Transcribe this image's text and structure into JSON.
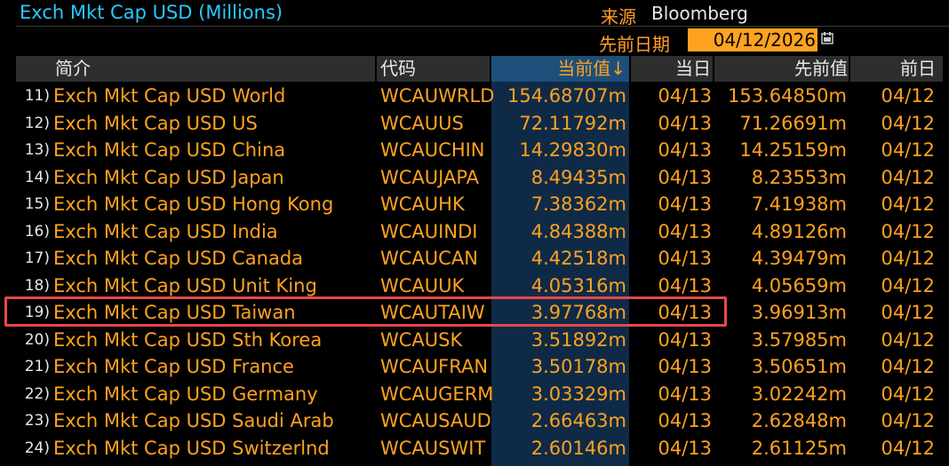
{
  "header_bar": {
    "title": "Exch Mkt Cap USD (Millions)",
    "source_label": "来源",
    "source_value": "Bloomberg",
    "prev_date_label": "先前日期",
    "prev_date_value": "04/12/2026"
  },
  "columns": {
    "profile": "简介",
    "ticker": "代码",
    "current": "当前值↓",
    "current_date": "当日",
    "previous": "先前值",
    "previous_date": "前日"
  },
  "rows": [
    {
      "n": "11)",
      "name": "Exch Mkt Cap USD World",
      "code": "WCAUWRLD",
      "cur": "154.68707m",
      "cd": "04/13",
      "prev": "153.64850m",
      "pd": "04/12"
    },
    {
      "n": "12)",
      "name": "Exch Mkt Cap USD US",
      "code": "WCAUUS",
      "cur": "72.11792m",
      "cd": "04/13",
      "prev": "71.26691m",
      "pd": "04/12"
    },
    {
      "n": "13)",
      "name": "Exch Mkt Cap USD China",
      "code": "WCAUCHIN",
      "cur": "14.29830m",
      "cd": "04/13",
      "prev": "14.25159m",
      "pd": "04/12"
    },
    {
      "n": "14)",
      "name": "Exch Mkt Cap USD Japan",
      "code": "WCAUJAPA",
      "cur": "8.49435m",
      "cd": "04/13",
      "prev": "8.23553m",
      "pd": "04/12"
    },
    {
      "n": "15)",
      "name": "Exch Mkt Cap USD Hong Kong",
      "code": "WCAUHK",
      "cur": "7.38362m",
      "cd": "04/13",
      "prev": "7.41938m",
      "pd": "04/12"
    },
    {
      "n": "16)",
      "name": "Exch Mkt Cap USD India",
      "code": "WCAUINDI",
      "cur": "4.84388m",
      "cd": "04/13",
      "prev": "4.89126m",
      "pd": "04/12"
    },
    {
      "n": "17)",
      "name": "Exch Mkt Cap USD Canada",
      "code": "WCAUCAN",
      "cur": "4.42518m",
      "cd": "04/13",
      "prev": "4.39479m",
      "pd": "04/12"
    },
    {
      "n": "18)",
      "name": "Exch Mkt Cap USD Unit King",
      "code": "WCAUUK",
      "cur": "4.05316m",
      "cd": "04/13",
      "prev": "4.05659m",
      "pd": "04/12"
    },
    {
      "n": "19)",
      "name": "Exch Mkt Cap USD Taiwan",
      "code": "WCAUTAIW",
      "cur": "3.97768m",
      "cd": "04/13",
      "prev": "3.96913m",
      "pd": "04/12"
    },
    {
      "n": "20)",
      "name": "Exch Mkt Cap USD Sth Korea",
      "code": "WCAUSK",
      "cur": "3.51892m",
      "cd": "04/13",
      "prev": "3.57985m",
      "pd": "04/12"
    },
    {
      "n": "21)",
      "name": "Exch Mkt Cap USD France",
      "code": "WCAUFRAN",
      "cur": "3.50178m",
      "cd": "04/13",
      "prev": "3.50651m",
      "pd": "04/12"
    },
    {
      "n": "22)",
      "name": "Exch Mkt Cap USD Germany",
      "code": "WCAUGERM",
      "cur": "3.03329m",
      "cd": "04/13",
      "prev": "3.02242m",
      "pd": "04/12"
    },
    {
      "n": "23)",
      "name": "Exch Mkt Cap USD Saudi Arab",
      "code": "WCAUSAUD",
      "cur": "2.66463m",
      "cd": "04/13",
      "prev": "2.62848m",
      "pd": "04/12"
    },
    {
      "n": "24)",
      "name": "Exch Mkt Cap USD Switzerlnd",
      "code": "WCAUSWIT",
      "cur": "2.60146m",
      "cd": "04/13",
      "prev": "2.61125m",
      "pd": "04/12"
    }
  ],
  "highlighted_row": "19)",
  "colors": {
    "accent_orange": "#ffa21f",
    "title_blue": "#28c8ff",
    "sort_column_bg": "#0f2a47",
    "highlight_red": "#e8474a"
  },
  "icons": {
    "calendar": "calendar-icon"
  }
}
